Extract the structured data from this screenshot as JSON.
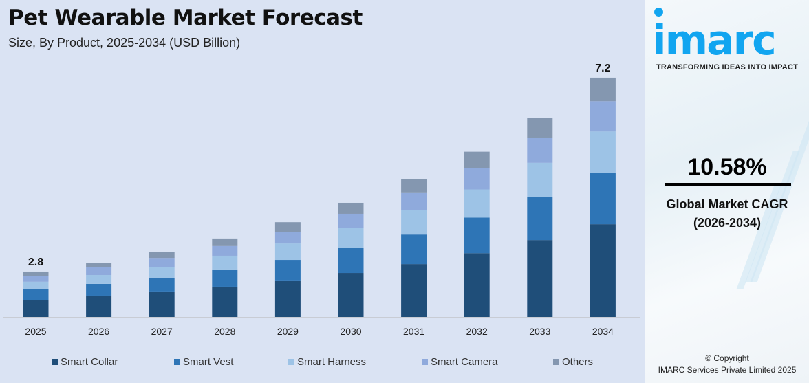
{
  "header": {
    "title": "Pet Wearable Market Forecast",
    "subtitle": "Size, By Product, 2025-2034 (USD Billion)"
  },
  "chart_data": {
    "type": "bar",
    "stacked": true,
    "title": "Pet Wearable Market Forecast",
    "subtitle": "Size, By Product, 2025-2034 (USD Billion)",
    "categories": [
      "2025",
      "2026",
      "2027",
      "2028",
      "2029",
      "2030",
      "2031",
      "2032",
      "2033",
      "2034"
    ],
    "series": [
      {
        "name": "Smart Collar",
        "color": "#1f4e79",
        "values": [
          1.06,
          1.18,
          1.27,
          1.37,
          1.51,
          1.68,
          1.88,
          2.13,
          2.43,
          2.79
        ]
      },
      {
        "name": "Smart Vest",
        "color": "#2e75b6",
        "values": [
          0.64,
          0.65,
          0.68,
          0.78,
          0.85,
          0.95,
          1.05,
          1.19,
          1.35,
          1.55
        ]
      },
      {
        "name": "Smart Harness",
        "color": "#9dc3e6",
        "values": [
          0.47,
          0.49,
          0.55,
          0.62,
          0.68,
          0.76,
          0.86,
          0.94,
          1.09,
          1.24
        ]
      },
      {
        "name": "Smart Camera",
        "color": "#8faadc",
        "values": [
          0.35,
          0.42,
          0.44,
          0.44,
          0.48,
          0.55,
          0.64,
          0.71,
          0.8,
          0.91
        ]
      },
      {
        "name": "Others",
        "color": "#8497b0",
        "values": [
          0.28,
          0.26,
          0.31,
          0.34,
          0.4,
          0.42,
          0.46,
          0.55,
          0.61,
          0.71
        ]
      }
    ],
    "data_labels": [
      {
        "category": "2025",
        "text": "2.8"
      },
      {
        "category": "2034",
        "text": "7.2"
      }
    ],
    "grid": false,
    "legend": "bottom"
  },
  "sidebar": {
    "logo": "imarc",
    "tagline": "TRANSFORMING IDEAS INTO IMPACT",
    "cagr_value": "10.58%",
    "cagr_label": "Global Market CAGR",
    "cagr_period": "(2026-2034)",
    "copyright": "© Copyright",
    "company": "IMARC Services Private Limited 2025",
    "brand_color": "#12a5f0"
  }
}
